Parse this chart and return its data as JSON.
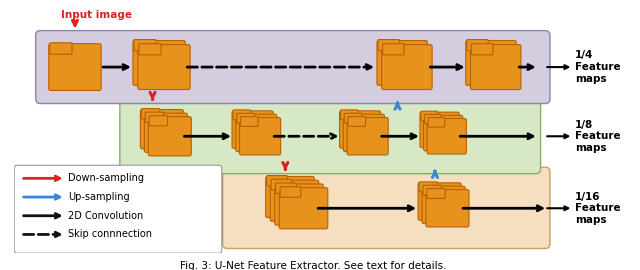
{
  "title": "Fig. 3: U-Net Feature Extractor. See text for details.",
  "bg_color": "#ffffff",
  "row_colors": [
    "#f5dfc0",
    "#d6e8c4",
    "#d4ccdf"
  ],
  "orange_color": "#e8921e",
  "orange_edge": "#b86000",
  "legend_entries": [
    {
      "color": "#dd2222",
      "style": "solid",
      "label": "Down-sampling"
    },
    {
      "color": "#3388dd",
      "style": "solid",
      "label": "Up-sampling"
    },
    {
      "color": "#111111",
      "style": "solid",
      "label": "2D Convolution"
    },
    {
      "color": "#111111",
      "style": "dashed",
      "label": "Skip connnection"
    }
  ],
  "right_labels": [
    "1/16\nFeature\nmaps",
    "1/8\nFeature\nmaps",
    "1/4\nFeature\nmaps"
  ],
  "input_label": "Input image",
  "caption": "Fig. 3: U-Net Feature Extractor. See text for details."
}
